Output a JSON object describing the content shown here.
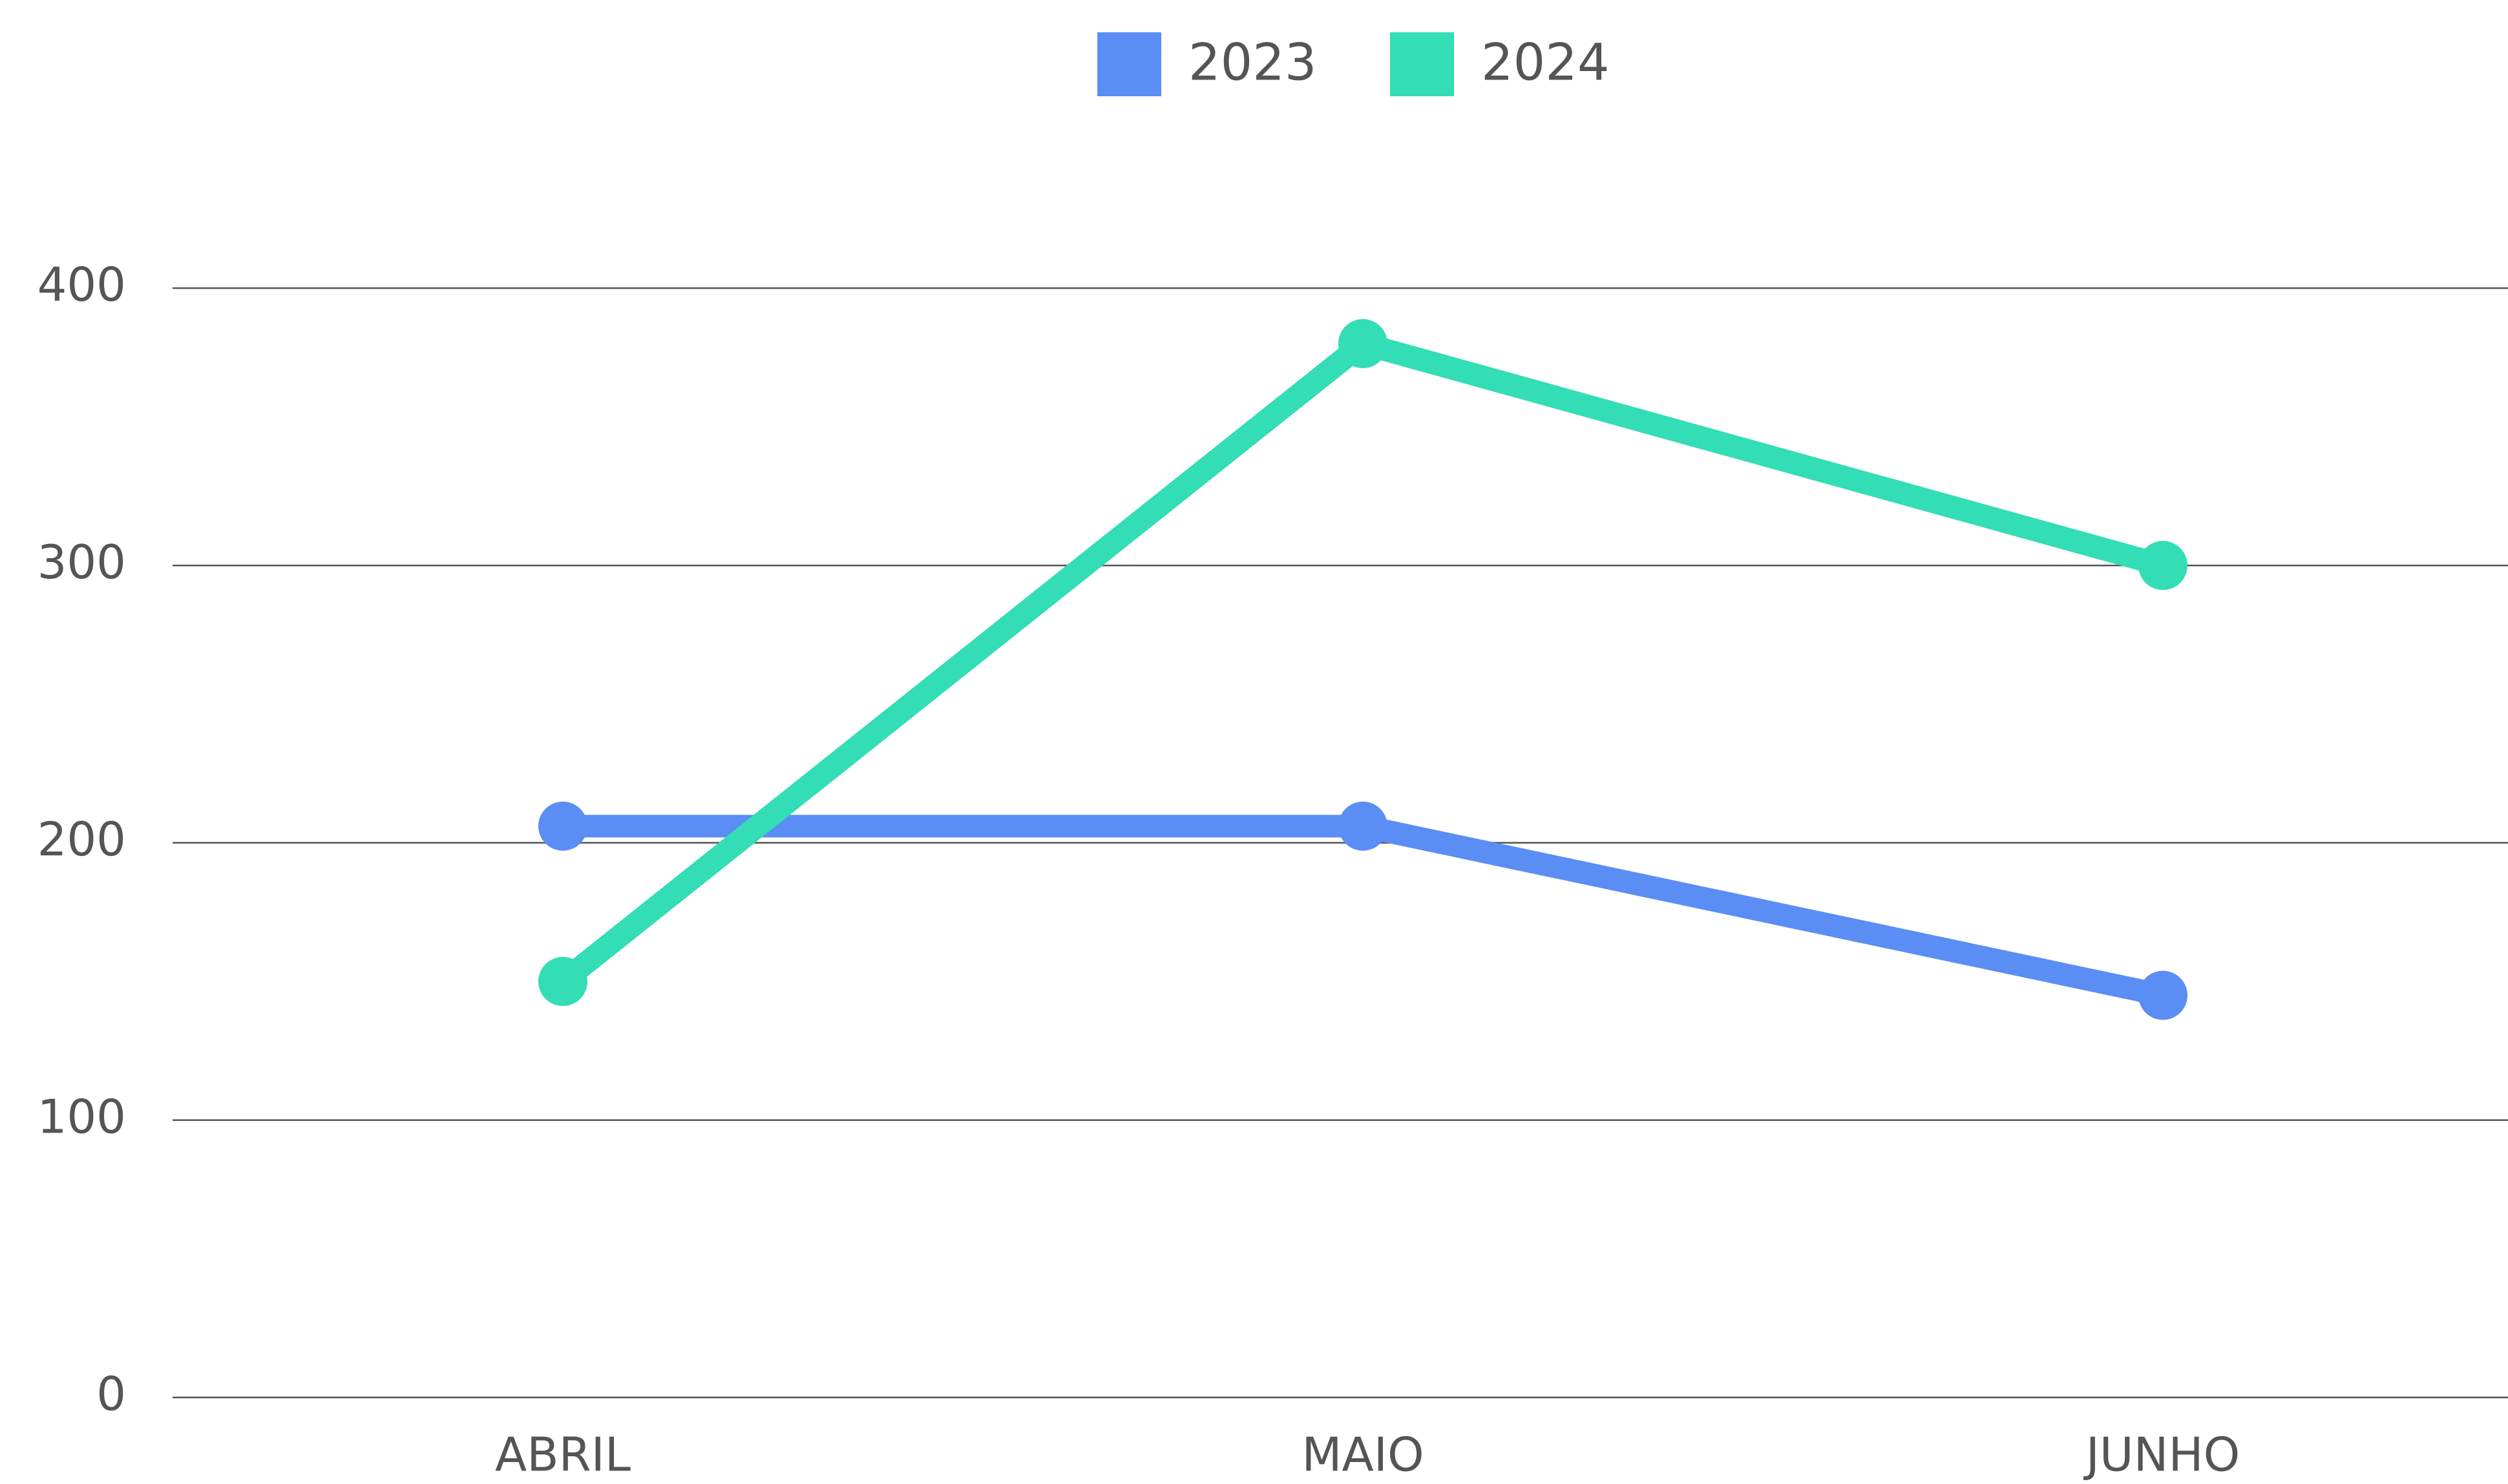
{
  "chart_data": {
    "type": "line",
    "categories": [
      "ABRIL",
      "MAIO",
      "JUNHO"
    ],
    "series": [
      {
        "name": "2023",
        "color": "#5b8ef4",
        "values": [
          206,
          206,
          145
        ]
      },
      {
        "name": "2024",
        "color": "#33ddb5",
        "values": [
          150,
          380,
          300
        ]
      }
    ],
    "ylim": [
      0,
      400
    ],
    "yticks": [
      0,
      100,
      200,
      300,
      400
    ],
    "grid": true,
    "legend": "top"
  }
}
